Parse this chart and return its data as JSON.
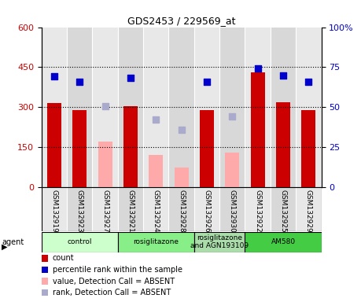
{
  "title": "GDS2453 / 229569_at",
  "samples": [
    "GSM132919",
    "GSM132923",
    "GSM132927",
    "GSM132921",
    "GSM132924",
    "GSM132928",
    "GSM132926",
    "GSM132930",
    "GSM132922",
    "GSM132925",
    "GSM132929"
  ],
  "count_values": [
    315,
    290,
    null,
    305,
    null,
    null,
    290,
    null,
    430,
    320,
    290
  ],
  "count_absent": [
    null,
    null,
    170,
    null,
    120,
    75,
    null,
    130,
    null,
    null,
    null
  ],
  "percentile_values": [
    415,
    395,
    null,
    410,
    null,
    null,
    395,
    null,
    445,
    420,
    395
  ],
  "percentile_absent": [
    null,
    null,
    305,
    null,
    255,
    215,
    null,
    265,
    null,
    null,
    null
  ],
  "ylim": [
    0,
    600
  ],
  "y2lim": [
    0,
    100
  ],
  "yticks": [
    0,
    150,
    300,
    450,
    600
  ],
  "y2ticks": [
    0,
    25,
    50,
    75,
    100
  ],
  "hlines": [
    150,
    300,
    450
  ],
  "agents": [
    {
      "label": "control",
      "start": 0,
      "end": 3,
      "color": "#ccffcc"
    },
    {
      "label": "rosiglitazone",
      "start": 3,
      "end": 6,
      "color": "#88ee88"
    },
    {
      "label": "rosiglitazone\nand AGN193109",
      "start": 6,
      "end": 8,
      "color": "#aaddaa"
    },
    {
      "label": "AM580",
      "start": 8,
      "end": 11,
      "color": "#44cc44"
    }
  ],
  "bar_color_present": "#cc0000",
  "bar_color_absent": "#ffaaaa",
  "dot_color_present": "#0000cc",
  "dot_color_absent": "#aaaacc",
  "bar_width": 0.55,
  "dot_size": 35,
  "left_ytick_color": "#cc0000",
  "right_ytick_color": "#0000cc",
  "background_color": "#ffffff",
  "plot_bg_color": "#d8d8d8",
  "col_bg_color": "#e8e8e8",
  "separator_color": "#ffffff"
}
